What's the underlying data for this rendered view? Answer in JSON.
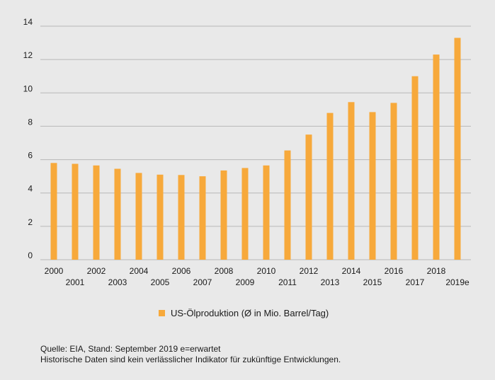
{
  "chart_data": {
    "type": "bar",
    "title": "",
    "xlabel": "",
    "ylabel": "",
    "categories": [
      "2000",
      "2001",
      "2002",
      "2003",
      "2004",
      "2005",
      "2006",
      "2007",
      "2008",
      "2009",
      "2010",
      "2011",
      "2012",
      "2013",
      "2014",
      "2015",
      "2016",
      "2017",
      "2018",
      "2019e"
    ],
    "series": [
      {
        "name": "US-Ölproduktion (Ø in Mio. Barrel/Tag)",
        "values": [
          5.8,
          5.75,
          5.65,
          5.45,
          5.2,
          5.1,
          5.08,
          5.0,
          5.35,
          5.5,
          5.65,
          6.55,
          7.5,
          8.8,
          9.45,
          8.85,
          9.4,
          11.0,
          12.3,
          13.3
        ]
      }
    ],
    "ylim": [
      0,
      14
    ],
    "yticks": [
      0,
      2,
      4,
      6,
      8,
      10,
      12,
      14
    ],
    "grid": true,
    "legend_position": "bottom-center"
  },
  "colors": {
    "bar": "#f7a93b",
    "grid": "#b8b8b8",
    "background": "#e9e9e9"
  },
  "legend": {
    "label": "US-Ölproduktion (Ø in Mio. Barrel/Tag)"
  },
  "footer": {
    "source": "Quelle: EIA, Stand: September 2019  e=erwartet",
    "disclaimer": "Historische Daten sind kein verlässlicher Indikator für zukünftige Entwicklungen."
  }
}
